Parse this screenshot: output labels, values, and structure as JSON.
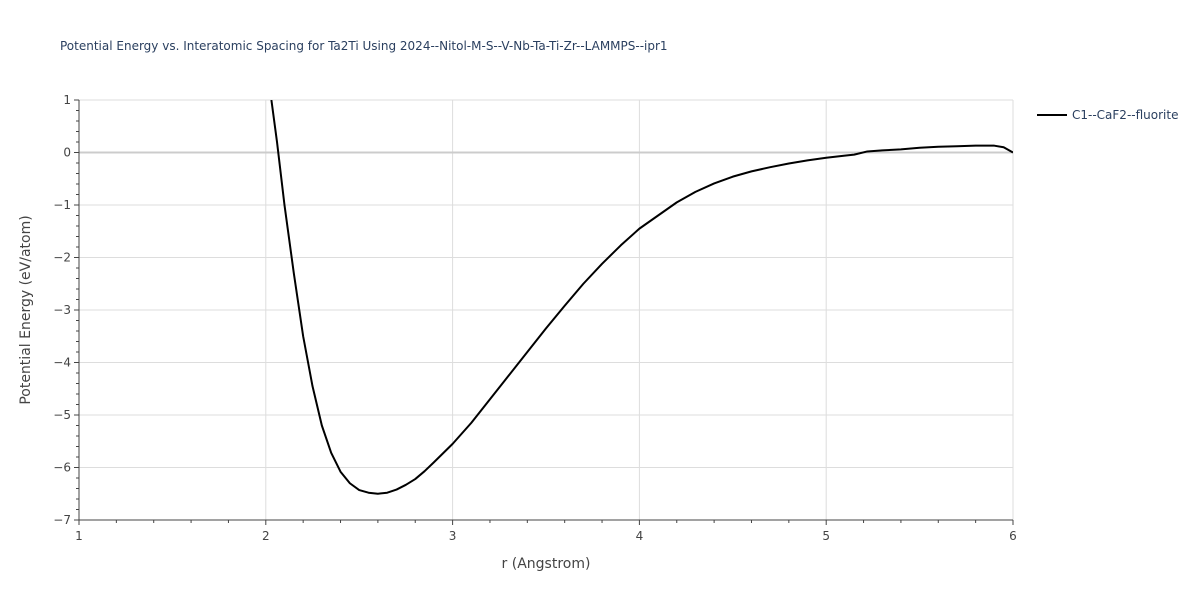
{
  "chart_data": {
    "type": "line",
    "title": "Potential Energy vs. Interatomic Spacing for Ta2Ti Using 2024--Nitol-M-S--V-Nb-Ta-Ti-Zr--LAMMPS--ipr1",
    "xlabel": "r (Angstrom)",
    "ylabel": "Potential Energy (eV/atom)",
    "xlim": [
      1,
      6
    ],
    "ylim": [
      -7,
      1
    ],
    "x_ticks": [
      1,
      2,
      3,
      4,
      5,
      6
    ],
    "x_tick_labels": [
      "1",
      "2",
      "3",
      "4",
      "5",
      "6"
    ],
    "y_ticks": [
      1,
      0,
      -1,
      -2,
      -3,
      -4,
      -5,
      -6,
      -7
    ],
    "y_tick_labels": [
      "1",
      "0",
      "−1",
      "−2",
      "−3",
      "−4",
      "−5",
      "−6",
      "−7"
    ],
    "grid": true,
    "legend_position": "top-right",
    "series": [
      {
        "name": "C1--CaF2--fluorite",
        "color": "#000000",
        "x": [
          2.03,
          2.06,
          2.1,
          2.15,
          2.2,
          2.25,
          2.3,
          2.35,
          2.4,
          2.45,
          2.5,
          2.55,
          2.6,
          2.65,
          2.7,
          2.75,
          2.8,
          2.85,
          2.9,
          3.0,
          3.1,
          3.2,
          3.3,
          3.4,
          3.5,
          3.6,
          3.7,
          3.8,
          3.9,
          4.0,
          4.1,
          4.2,
          4.3,
          4.4,
          4.5,
          4.6,
          4.7,
          4.8,
          4.9,
          5.0,
          5.1,
          5.15,
          5.22,
          5.3,
          5.4,
          5.5,
          5.6,
          5.7,
          5.8,
          5.9,
          5.95,
          6.0
        ],
        "y": [
          1.0,
          0.2,
          -1.0,
          -2.3,
          -3.5,
          -4.45,
          -5.2,
          -5.72,
          -6.08,
          -6.3,
          -6.43,
          -6.48,
          -6.5,
          -6.48,
          -6.42,
          -6.33,
          -6.22,
          -6.07,
          -5.9,
          -5.55,
          -5.15,
          -4.7,
          -4.25,
          -3.8,
          -3.35,
          -2.92,
          -2.5,
          -2.12,
          -1.77,
          -1.45,
          -1.2,
          -0.95,
          -0.75,
          -0.59,
          -0.46,
          -0.36,
          -0.28,
          -0.21,
          -0.15,
          -0.1,
          -0.06,
          -0.04,
          0.02,
          0.04,
          0.06,
          0.09,
          0.11,
          0.12,
          0.13,
          0.13,
          0.1,
          0.0
        ]
      }
    ]
  }
}
